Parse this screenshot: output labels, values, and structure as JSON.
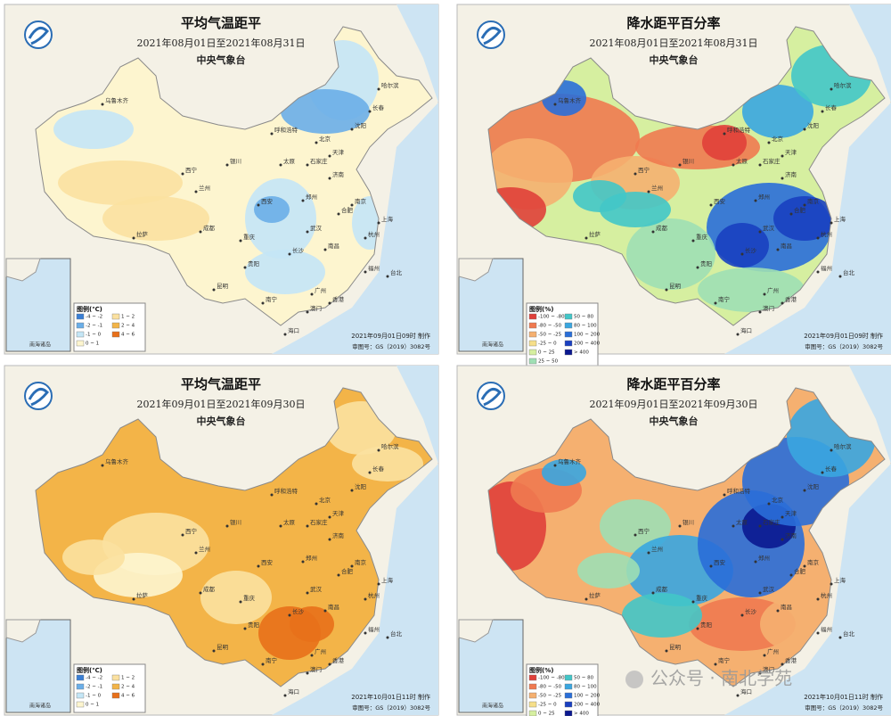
{
  "panels": [
    {
      "title": "平均气温距平",
      "subtitle": "2021年08月01日至2021年08月31日",
      "issuer": "中央气象台",
      "legend": {
        "title": "图例(℃)",
        "items": [
          {
            "label": "-4 ~ -2",
            "color": "#3a7fd5"
          },
          {
            "label": "-2 ~ -1",
            "color": "#6aaee8"
          },
          {
            "label": "-1 ~ 0",
            "color": "#c4e6f6"
          },
          {
            "label": "0 ~ 1",
            "color": "#fdf5cf"
          },
          {
            "label": "1 ~ 2",
            "color": "#fbe1a0"
          },
          {
            "label": "2 ~ 4",
            "color": "#f3b448"
          },
          {
            "label": "4 ~ 6",
            "color": "#e8701a"
          }
        ]
      },
      "footer_time": "2021年09月01日09时 制作",
      "review_no": "审图号：GS（2019）3082号",
      "inset_label": "南海诸岛"
    },
    {
      "title": "降水距平百分率",
      "subtitle": "2021年08月01日至2021年08月31日",
      "issuer": "中央气象台",
      "legend": {
        "title": "图例(%)",
        "items": [
          {
            "label": "-100 ~ -80",
            "color": "#e0403a"
          },
          {
            "label": "-80 ~ -50",
            "color": "#f07a50"
          },
          {
            "label": "-50 ~ -25",
            "color": "#f5b070"
          },
          {
            "label": "-25 ~ 0",
            "color": "#f6df8a"
          },
          {
            "label": "0 ~ 25",
            "color": "#d6efa0"
          },
          {
            "label": "25 ~ 50",
            "color": "#9fdfb4"
          },
          {
            "label": "50 ~ 80",
            "color": "#42c6c8"
          },
          {
            "label": "80 ~ 100",
            "color": "#3aa6e0"
          },
          {
            "label": "100 ~ 200",
            "color": "#2a6ed8"
          },
          {
            "label": "200 ~ 400",
            "color": "#1a40c0"
          },
          {
            "label": "> 400",
            "color": "#0a1890"
          }
        ]
      },
      "footer_time": "2021年09月01日09时 制作",
      "review_no": "审图号：GS（2019）3082号",
      "inset_label": "南海诸岛"
    },
    {
      "title": "平均气温距平",
      "subtitle": "2021年09月01日至2021年09月30日",
      "issuer": "中央气象台",
      "legend": {
        "title": "图例(℃)",
        "items": [
          {
            "label": "-4 ~ -2",
            "color": "#3a7fd5"
          },
          {
            "label": "-2 ~ -1",
            "color": "#6aaee8"
          },
          {
            "label": "-1 ~ 0",
            "color": "#c4e6f6"
          },
          {
            "label": "0 ~ 1",
            "color": "#fdf5cf"
          },
          {
            "label": "1 ~ 2",
            "color": "#fbe1a0"
          },
          {
            "label": "2 ~ 4",
            "color": "#f3b448"
          },
          {
            "label": "4 ~ 6",
            "color": "#e8701a"
          }
        ]
      },
      "footer_time": "2021年10月01日11时 制作",
      "review_no": "审图号：GS（2019）3082号",
      "inset_label": "南海诸岛"
    },
    {
      "title": "降水距平百分率",
      "subtitle": "2021年09月01日至2021年09月30日",
      "issuer": "中央气象台",
      "legend": {
        "title": "图例(%)",
        "items": [
          {
            "label": "-100 ~ -80",
            "color": "#e0403a"
          },
          {
            "label": "-80 ~ -50",
            "color": "#f07a50"
          },
          {
            "label": "-50 ~ -25",
            "color": "#f5b070"
          },
          {
            "label": "-25 ~ 0",
            "color": "#f6df8a"
          },
          {
            "label": "0 ~ 25",
            "color": "#d6efa0"
          },
          {
            "label": "25 ~ 50",
            "color": "#9fdfb4"
          },
          {
            "label": "50 ~ 80",
            "color": "#42c6c8"
          },
          {
            "label": "80 ~ 100",
            "color": "#3aa6e0"
          },
          {
            "label": "100 ~ 200",
            "color": "#2a6ed8"
          },
          {
            "label": "200 ~ 400",
            "color": "#1a40c0"
          },
          {
            "label": "> 400",
            "color": "#0a1890"
          }
        ]
      },
      "footer_time": "2021年10月01日11时 制作",
      "review_no": "审图号：GS（2019）3082号",
      "inset_label": "南海诸岛"
    }
  ],
  "cities": [
    "乌鲁木齐",
    "拉萨",
    "西宁",
    "兰州",
    "银川",
    "呼和浩特",
    "北京",
    "天津",
    "石家庄",
    "太原",
    "济南",
    "郑州",
    "西安",
    "成都",
    "重庆",
    "武汉",
    "长沙",
    "南昌",
    "合肥",
    "南京",
    "上海",
    "杭州",
    "福州",
    "台北",
    "广州",
    "南宁",
    "海口",
    "昆明",
    "贵阳",
    "哈尔滨",
    "长春",
    "沈阳",
    "香港",
    "澳门"
  ],
  "watermark": "公众号 · 南北学苑"
}
